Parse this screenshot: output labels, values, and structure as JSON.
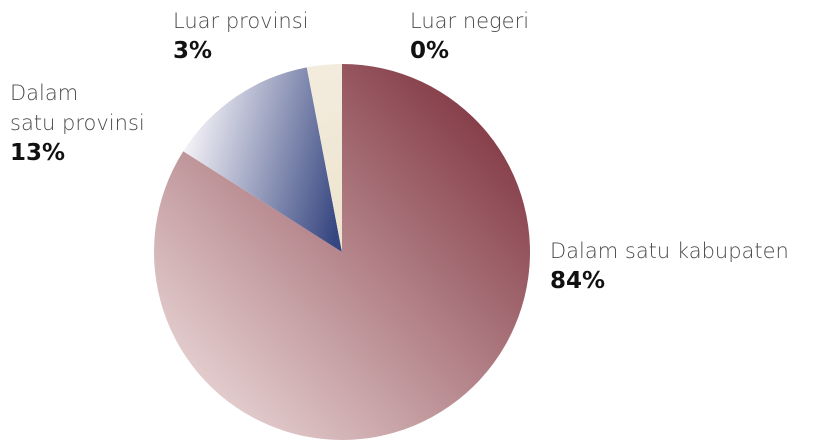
{
  "chart_data": {
    "type": "pie",
    "categories": [
      "Dalam satu kabupaten",
      "Dalam\nsatu provinsi",
      "Luar provinsi",
      "Luar negeri"
    ],
    "values": [
      84,
      13,
      3,
      0
    ],
    "value_labels": [
      "84%",
      "13%",
      "3%",
      "0%"
    ],
    "colors": [
      [
        "#7c2f3b",
        "#e8d4d4"
      ],
      [
        "#f2f0f6",
        "#364680"
      ],
      [
        "#f3ecdd",
        "#ede3cf"
      ],
      [
        "#f3ecdd",
        "#ede3cf"
      ]
    ]
  }
}
